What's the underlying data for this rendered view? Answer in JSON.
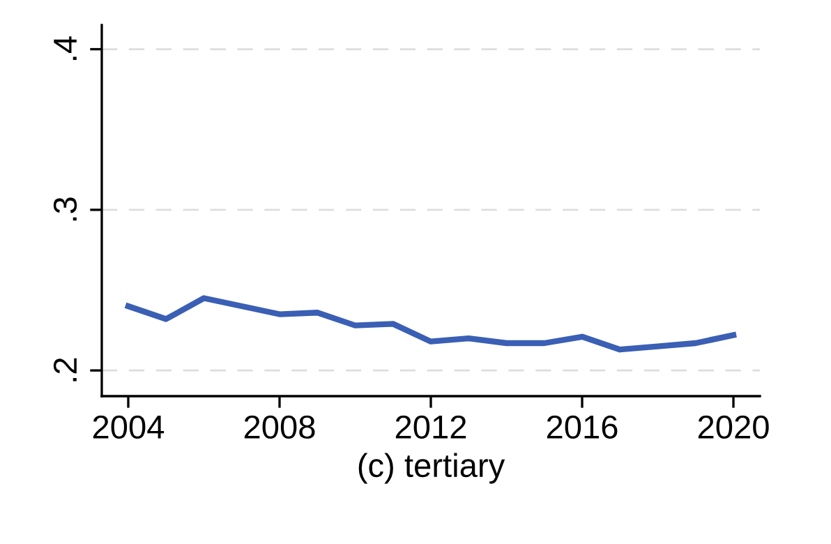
{
  "chart_data": {
    "type": "line",
    "xlabel": "(c) tertiary",
    "x": [
      2004,
      2005,
      2006,
      2007,
      2008,
      2009,
      2010,
      2011,
      2012,
      2013,
      2014,
      2015,
      2016,
      2017,
      2018,
      2019,
      2020
    ],
    "series": [
      {
        "color": "#3a5fb4",
        "values": [
          0.24,
          0.232,
          0.245,
          0.24,
          0.235,
          0.236,
          0.228,
          0.229,
          0.218,
          0.22,
          0.217,
          0.217,
          0.221,
          0.213,
          0.215,
          0.217,
          0.222
        ]
      }
    ],
    "xlim": [
      2003.3,
      2020.7
    ],
    "xticks": [
      2004,
      2008,
      2012,
      2016,
      2020
    ],
    "ylim": [
      0.184,
      0.415
    ],
    "yticks": [
      {
        "value": 0.2,
        "label": ".2"
      },
      {
        "value": 0.3,
        "label": ".3"
      },
      {
        "value": 0.4,
        "label": ".4"
      }
    ],
    "grid": "y",
    "line_style": "solid",
    "marker": "none"
  }
}
